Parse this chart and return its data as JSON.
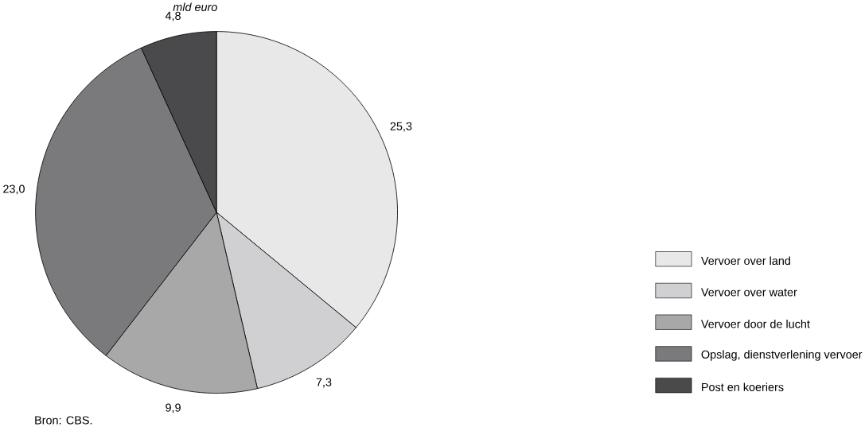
{
  "chart_data": {
    "type": "pie",
    "title": "mld euro",
    "categories": [
      "Vervoer over land",
      "Vervoer over water",
      "Vervoer door de lucht",
      "Opslag, dienstverlening vervoer",
      "Post en koeriers"
    ],
    "values": [
      25.3,
      7.3,
      9.9,
      23.0,
      4.8
    ],
    "value_labels": [
      "25,3",
      "7,3",
      "9,9",
      "23,0",
      "4,8"
    ],
    "colors": [
      "#e8e8e8",
      "#d0d0d2",
      "#a8a8a8",
      "#7a7a7c",
      "#4a4a4c"
    ],
    "legend": "right",
    "annotations": [
      "Bron: CBS."
    ]
  }
}
